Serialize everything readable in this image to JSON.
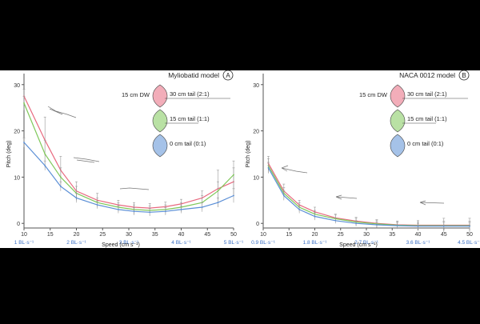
{
  "colors": {
    "background": "#000000",
    "panel": "#ffffff",
    "axis": "#555555",
    "pink": "#e8697f",
    "green": "#7fc85a",
    "blue": "#5b8fd6",
    "gray_err": "#999999",
    "bl_label": "#3a6fc4"
  },
  "chart_data": [
    {
      "type": "line",
      "title": "Myliobatid model",
      "panel_label": "A",
      "xlabel": "Speed (cm s⁻¹)",
      "ylabel": "Pitch (deg)",
      "xlim": [
        10,
        50
      ],
      "ylim": [
        -1,
        31
      ],
      "xticks": [
        10,
        15,
        20,
        25,
        30,
        35,
        40,
        45,
        50
      ],
      "yticks": [
        0,
        10,
        20,
        30
      ],
      "bl_labels": [
        {
          "x": 10,
          "text": "1 BL·s⁻¹"
        },
        {
          "x": 20,
          "text": "2 BL·s⁻¹"
        },
        {
          "x": 30,
          "text": "3 BL·s⁻¹"
        },
        {
          "x": 40,
          "text": "4 BL·s⁻¹"
        },
        {
          "x": 50,
          "text": "5 BL·s⁻¹"
        }
      ],
      "legend_title": "15 cm DW",
      "legend": [
        "30 cm tail (2:1)",
        "15 cm tail (1:1)",
        "0 cm tail (0:1)"
      ],
      "x": [
        10,
        14,
        17,
        20,
        24,
        28,
        31,
        34,
        37,
        40,
        44,
        47,
        50
      ],
      "series": [
        {
          "name": "30 cm tail (2:1)",
          "color": "pink",
          "values": [
            27.5,
            18,
            11.5,
            7,
            5,
            4,
            3.5,
            3.3,
            3.6,
            4.2,
            5.5,
            7.5,
            9
          ],
          "err": [
            1.5,
            5,
            3,
            2,
            1.5,
            1,
            1,
            1,
            1,
            1,
            1.5,
            4,
            3
          ]
        },
        {
          "name": "15 cm tail (1:1)",
          "color": "green",
          "values": [
            26,
            15,
            10,
            6.5,
            4.5,
            3.5,
            3.0,
            2.8,
            3.0,
            3.5,
            4.5,
            7,
            10.5
          ],
          "err": [
            1.5,
            3,
            2,
            1.5,
            1,
            1,
            1,
            1,
            1,
            1,
            1.5,
            2,
            3
          ]
        },
        {
          "name": "0 cm tail (0:1)",
          "color": "blue",
          "values": [
            17.5,
            12.5,
            8,
            5.5,
            4,
            3,
            2.6,
            2.4,
            2.6,
            3,
            3.5,
            4.5,
            6
          ],
          "err": [
            1,
            1,
            1,
            1,
            0.8,
            0.8,
            0.8,
            0.8,
            0.8,
            0.8,
            1,
            1,
            1.5
          ]
        }
      ]
    },
    {
      "type": "line",
      "title": "NACA 0012 model",
      "panel_label": "B",
      "xlabel": "Speed (cm s⁻¹)",
      "ylabel": "Pitch (deg)",
      "xlim": [
        10,
        50
      ],
      "ylim": [
        -1,
        31
      ],
      "xticks": [
        10,
        15,
        20,
        25,
        30,
        35,
        40,
        45,
        50
      ],
      "yticks": [
        0,
        10,
        20,
        30
      ],
      "bl_labels": [
        {
          "x": 10,
          "text": "0.9 BL·s⁻¹"
        },
        {
          "x": 20,
          "text": "1.8 BL·s⁻¹"
        },
        {
          "x": 30,
          "text": "2.7 BL·s⁻¹"
        },
        {
          "x": 40,
          "text": "3.6 BL·s⁻¹"
        },
        {
          "x": 50,
          "text": "4.5 BL·s⁻¹"
        }
      ],
      "legend_title": "15 cm DW",
      "legend": [
        "30 cm tail (2:1)",
        "15 cm tail (1:1)",
        "0 cm tail (0:1)"
      ],
      "x": [
        11,
        14,
        17,
        20,
        24,
        28,
        32,
        36,
        40,
        45,
        50
      ],
      "series": [
        {
          "name": "30 cm tail (2:1)",
          "color": "pink",
          "values": [
            13,
            7,
            4,
            2.5,
            1.2,
            0.5,
            0,
            -0.3,
            -0.4,
            -0.4,
            -0.4
          ],
          "err": [
            1.5,
            1.5,
            1,
            1,
            0.8,
            0.8,
            0.8,
            0.8,
            1,
            1.5,
            1.5
          ]
        },
        {
          "name": "15 cm tail (1:1)",
          "color": "green",
          "values": [
            12.5,
            6.5,
            3.5,
            2,
            1,
            0.3,
            -0.1,
            -0.4,
            -0.5,
            -0.5,
            -0.5
          ],
          "err": [
            1.5,
            1.2,
            1,
            0.8,
            0.8,
            0.8,
            0.8,
            0.8,
            0.8,
            1,
            1
          ]
        },
        {
          "name": "0 cm tail (0:1)",
          "color": "blue",
          "values": [
            12,
            6,
            3,
            1.5,
            0.6,
            0,
            -0.3,
            -0.5,
            -0.6,
            -0.6,
            -0.6
          ],
          "err": [
            1.2,
            1,
            0.8,
            0.8,
            0.6,
            0.6,
            0.6,
            0.6,
            0.6,
            0.8,
            0.8
          ]
        }
      ]
    }
  ]
}
